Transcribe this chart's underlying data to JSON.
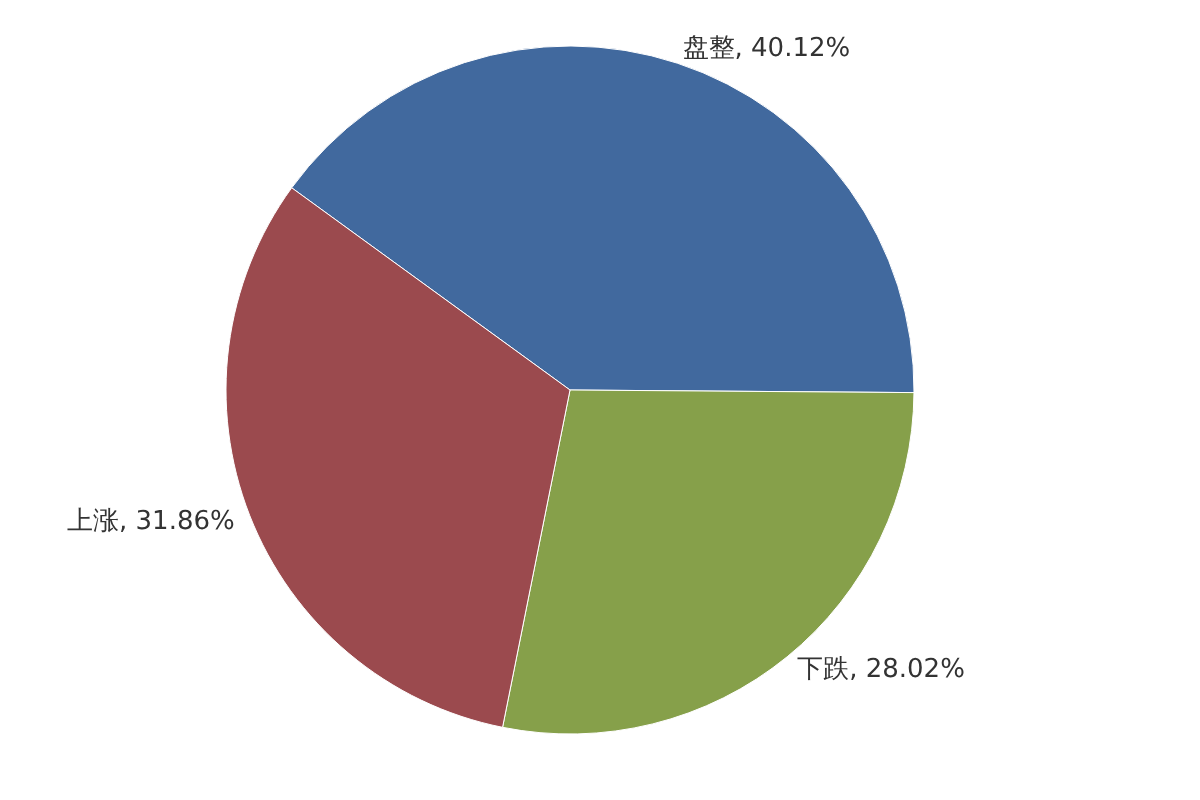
{
  "chart_data": {
    "type": "pie",
    "categories": [
      "盘整",
      "下跌",
      "上涨"
    ],
    "values": [
      40.12,
      28.02,
      31.86
    ],
    "colors": [
      "#41699e",
      "#86a04a",
      "#9b4a4e"
    ],
    "value_labels": [
      "40.12%",
      "28.02%",
      "31.86%"
    ],
    "legend": false
  }
}
